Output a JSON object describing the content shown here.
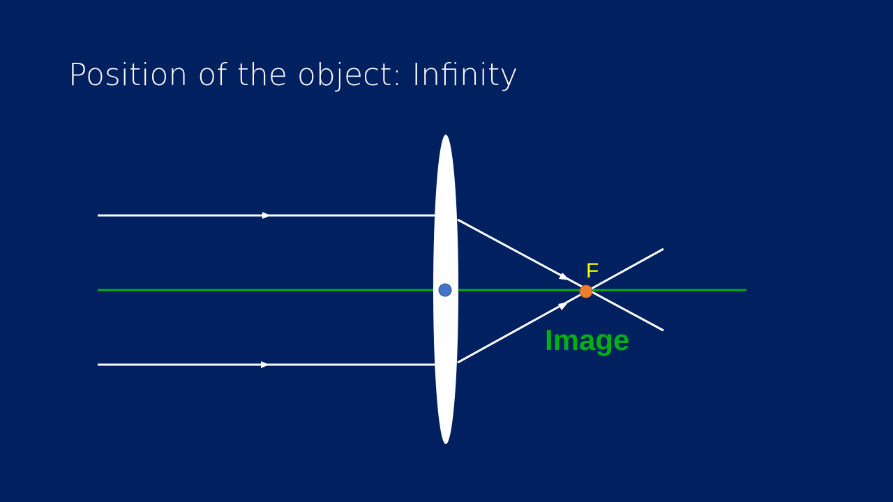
{
  "slide": {
    "title": "Position of the object: Infinity"
  },
  "diagram": {
    "focal_point_label": "F",
    "image_label": "Image"
  },
  "colors": {
    "background": "#002060",
    "ray": "#ffffff",
    "lens": "#ffffff",
    "principal_axis": "#00b015",
    "optical_center": "#4472c4",
    "focal_point": "#ed7d31",
    "focal_label": "#ffff00",
    "image_label": "#00b015"
  }
}
